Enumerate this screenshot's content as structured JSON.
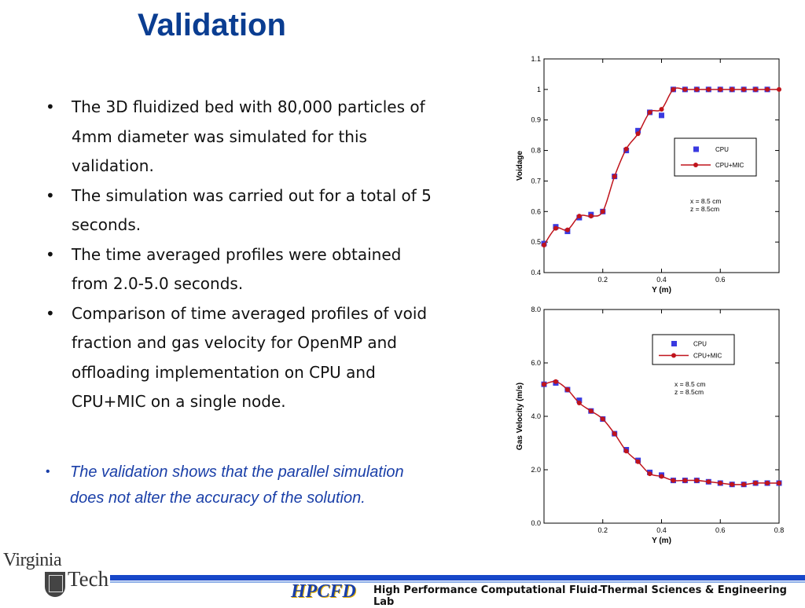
{
  "slide": {
    "title": "Validation",
    "bullets": [
      "The 3D fluidized bed with 80,000 particles of 4mm diameter was simulated for this validation.",
      "The simulation was carried out for a total of 5 seconds.",
      "The time averaged profiles were obtained from 2.0-5.0 seconds.",
      "Comparison of time averaged profiles of void fraction and gas velocity for OpenMP and offloading implementation on CPU and CPU+MIC on a single node."
    ],
    "bullet_symbol": "•",
    "conclusion": "The validation shows that the parallel simulation does not alter the accuracy of the solution.",
    "footer": "High Performance Computational Fluid-Thermal Sciences & Engineering Lab",
    "logo_left_line1": "Virginia",
    "logo_left_line2": "Tech",
    "logo_right": "HPCFD",
    "colors": {
      "title": "#0a3d91",
      "conclusion": "#1a3fa8",
      "footer_bar": "#1747c9",
      "cpu_marker": "#3a3ae0",
      "cpu_mic_line": "#c0141c"
    }
  },
  "chart_data": [
    {
      "type": "scatter",
      "xlabel": "Y (m)",
      "ylabel": "Voidage",
      "xlim": [
        0,
        0.8
      ],
      "ylim": [
        0.4,
        1.1
      ],
      "x_ticks": [
        0.2,
        0.4,
        0.6
      ],
      "y_ticks": [
        0.4,
        0.5,
        0.6,
        0.7,
        0.8,
        0.9,
        1,
        1.1
      ],
      "y_tick_labels": [
        "0.4",
        "0.5",
        "0.6",
        "0.7",
        "0.8",
        "0.9",
        "1",
        "1.1"
      ],
      "legend_position": "right",
      "annotation": [
        "x = 8.5 cm",
        "z = 8.5cm"
      ],
      "series": [
        {
          "name": "CPU",
          "style": "square-marker",
          "color": "#3a3ae0",
          "x": [
            0.0,
            0.04,
            0.08,
            0.12,
            0.16,
            0.2,
            0.24,
            0.28,
            0.32,
            0.36,
            0.4,
            0.44,
            0.48,
            0.52,
            0.56,
            0.6,
            0.64,
            0.68,
            0.72,
            0.76
          ],
          "y": [
            0.495,
            0.55,
            0.535,
            0.58,
            0.59,
            0.6,
            0.715,
            0.8,
            0.865,
            0.925,
            0.915,
            1.0,
            1.0,
            1.0,
            1.0,
            1.0,
            1.0,
            1.0,
            1.0,
            1.0
          ]
        },
        {
          "name": "CPU+MIC",
          "style": "line-dot-marker",
          "color": "#c0141c",
          "x": [
            0.0,
            0.04,
            0.08,
            0.12,
            0.16,
            0.2,
            0.24,
            0.28,
            0.32,
            0.36,
            0.4,
            0.44,
            0.48,
            0.52,
            0.56,
            0.6,
            0.64,
            0.68,
            0.72,
            0.76,
            0.8
          ],
          "y": [
            0.49,
            0.545,
            0.54,
            0.585,
            0.585,
            0.6,
            0.715,
            0.805,
            0.855,
            0.925,
            0.935,
            1.0,
            1.0,
            1.0,
            1.0,
            1.0,
            1.0,
            1.0,
            1.0,
            1.0,
            1.0
          ]
        }
      ]
    },
    {
      "type": "scatter",
      "xlabel": "Y (m)",
      "ylabel": "Gas Velocity (m/s)",
      "xlim": [
        0,
        0.8
      ],
      "ylim": [
        0,
        8
      ],
      "x_ticks": [
        0.2,
        0.4,
        0.6,
        0.8
      ],
      "y_ticks": [
        0,
        2,
        4,
        6,
        8
      ],
      "y_tick_labels": [
        "0.0",
        "2.0",
        "4.0",
        "6.0",
        "8.0"
      ],
      "legend_position": "top-right",
      "annotation": [
        "x = 8.5 cm",
        "z = 8.5cm"
      ],
      "series": [
        {
          "name": "CPU",
          "style": "square-marker",
          "color": "#3a3ae0",
          "x": [
            0.0,
            0.04,
            0.08,
            0.12,
            0.16,
            0.2,
            0.24,
            0.28,
            0.32,
            0.36,
            0.4,
            0.44,
            0.48,
            0.52,
            0.56,
            0.6,
            0.64,
            0.68,
            0.72,
            0.76,
            0.8
          ],
          "y": [
            5.2,
            5.25,
            5.0,
            4.6,
            4.2,
            3.9,
            3.35,
            2.75,
            2.35,
            1.9,
            1.8,
            1.6,
            1.6,
            1.6,
            1.55,
            1.5,
            1.45,
            1.45,
            1.5,
            1.5,
            1.5
          ]
        },
        {
          "name": "CPU+MIC",
          "style": "line-dot-marker",
          "color": "#c0141c",
          "x": [
            0.0,
            0.04,
            0.08,
            0.12,
            0.16,
            0.2,
            0.24,
            0.28,
            0.32,
            0.36,
            0.4,
            0.44,
            0.48,
            0.52,
            0.56,
            0.6,
            0.64,
            0.68,
            0.72,
            0.76,
            0.8
          ],
          "y": [
            5.2,
            5.3,
            5.0,
            4.5,
            4.2,
            3.9,
            3.35,
            2.7,
            2.3,
            1.85,
            1.75,
            1.6,
            1.6,
            1.6,
            1.55,
            1.5,
            1.45,
            1.45,
            1.5,
            1.5,
            1.5
          ]
        }
      ]
    }
  ]
}
